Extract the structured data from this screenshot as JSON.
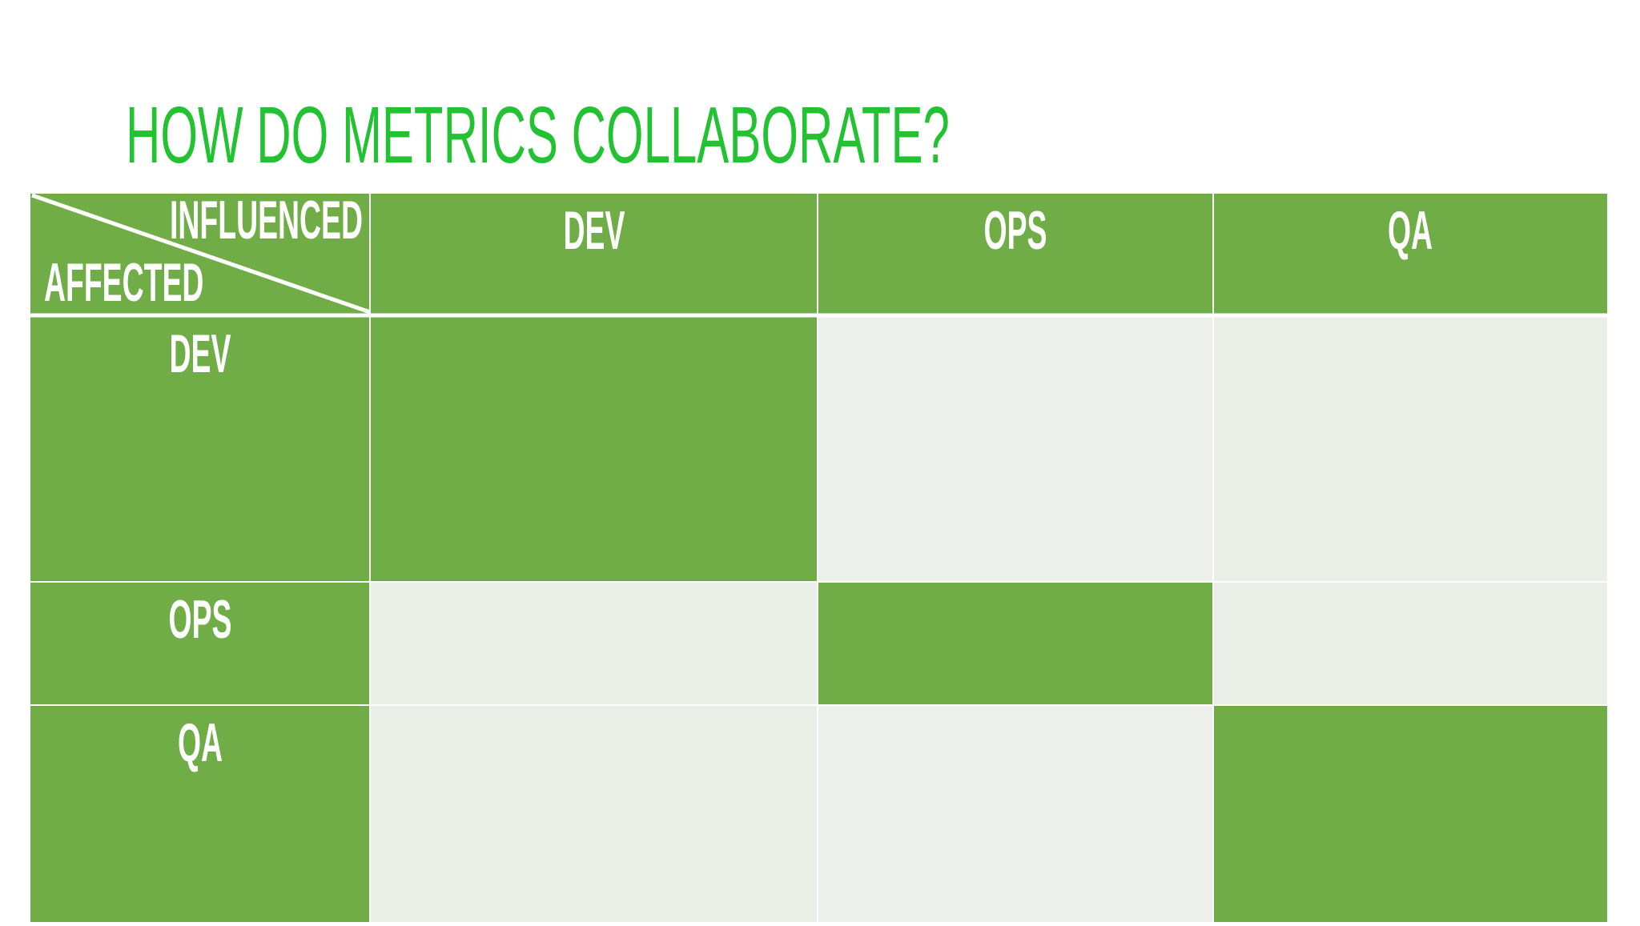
{
  "title": "HOW DO METRICS COLLABORATE?",
  "table": {
    "corner": {
      "top": "INFLUENCED",
      "bottom": "AFFECTED"
    },
    "columns": [
      "DEV",
      "OPS",
      "QA"
    ],
    "rows": [
      "DEV",
      "OPS",
      "QA"
    ]
  }
}
